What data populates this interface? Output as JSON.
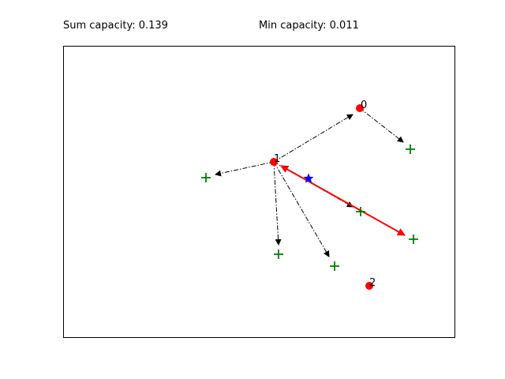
{
  "header": {
    "sum_capacity": "Sum capacity: 0.139",
    "min_capacity": "Min capacity: 0.011"
  },
  "colors": {
    "node": "#ff0000",
    "user": "#008000",
    "star": "#0000ff",
    "link": "#000000",
    "active_link": "#ff0000"
  },
  "nodes": [
    {
      "id": "node-0",
      "label": "0"
    },
    {
      "id": "node-1",
      "label": "1"
    },
    {
      "id": "node-2",
      "label": "2"
    }
  ]
}
